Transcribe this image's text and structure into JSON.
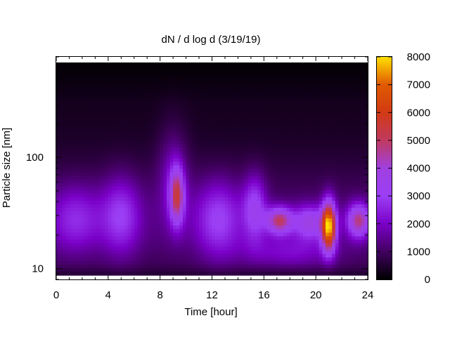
{
  "chart_data": {
    "type": "heatmap",
    "title": "dN / d log d (3/19/19)",
    "xlabel": "Time [hour]",
    "ylabel": "Particle size [nm]",
    "xlim": [
      0,
      24
    ],
    "ylim": [
      8,
      800
    ],
    "y_scale": "log",
    "x_ticks": [
      0,
      4,
      8,
      12,
      16,
      20,
      24
    ],
    "y_ticks": [
      10,
      100
    ],
    "colorbar": {
      "range": [
        0,
        8000
      ],
      "ticks": [
        0,
        1000,
        2000,
        3000,
        4000,
        5000,
        6000,
        7000,
        8000
      ],
      "colormap": [
        "#000000",
        "#420060",
        "#7a00c8",
        "#9b3ff5",
        "#a040e0",
        "#c03a60",
        "#d23a14",
        "#e05a00",
        "#ffe000"
      ]
    },
    "baseline": 300,
    "features": [
      {
        "x": 1.5,
        "y": 28,
        "amplitude": 1500,
        "x_width": 2.0,
        "y_width_decades": 0.3
      },
      {
        "x": 5.0,
        "y": 30,
        "amplitude": 1800,
        "x_width": 1.5,
        "y_width_decades": 0.35
      },
      {
        "x": 9.3,
        "y": 45,
        "amplitude": 3600,
        "x_width": 0.55,
        "y_width_decades": 0.25
      },
      {
        "x": 9.0,
        "y": 70,
        "amplitude": 1200,
        "x_width": 1.2,
        "y_width_decades": 0.45
      },
      {
        "x": 12.5,
        "y": 28,
        "amplitude": 1900,
        "x_width": 1.8,
        "y_width_decades": 0.35
      },
      {
        "x": 15.3,
        "y": 35,
        "amplitude": 2100,
        "x_width": 0.9,
        "y_width_decades": 0.3
      },
      {
        "x": 17.2,
        "y": 27,
        "amplitude": 3800,
        "x_width": 1.0,
        "y_width_decades": 0.12
      },
      {
        "x": 19.5,
        "y": 26,
        "amplitude": 2600,
        "x_width": 1.2,
        "y_width_decades": 0.15
      },
      {
        "x": 21.0,
        "y": 24,
        "amplitude": 6500,
        "x_width": 0.55,
        "y_width_decades": 0.22
      },
      {
        "x": 23.3,
        "y": 27,
        "amplitude": 3600,
        "x_width": 0.9,
        "y_width_decades": 0.15
      },
      {
        "x": 18.0,
        "y": 14,
        "amplitude": 1100,
        "x_width": 3.5,
        "y_width_decades": 0.15
      }
    ]
  }
}
